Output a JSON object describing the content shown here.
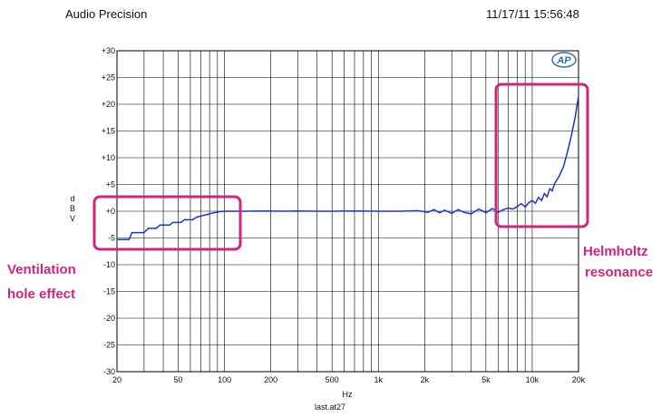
{
  "header": {
    "left": "Audio Precision",
    "right": "11/17/11 15:56:48"
  },
  "logo": {
    "text": "AP",
    "name": "ap-logo-icon"
  },
  "annotations": [
    {
      "id": "ventilation",
      "lines": [
        "Ventilation",
        "hole effect"
      ]
    },
    {
      "id": "helmholtz",
      "lines": [
        "Helmholtz",
        "resonance"
      ]
    }
  ],
  "colors": {
    "trace": "#1f33cc",
    "annotation": "#d0247f",
    "grid": "#000000"
  },
  "chart_data": {
    "type": "line",
    "xscale": "log",
    "xlim": [
      20,
      20000
    ],
    "ylim": [
      -30,
      30
    ],
    "xlabel": "Hz",
    "ylabel": "dBV",
    "footer": "last.at27",
    "grid": true,
    "x_tick_labels": [
      {
        "value": 20,
        "label": "20"
      },
      {
        "value": 50,
        "label": "50"
      },
      {
        "value": 100,
        "label": "100"
      },
      {
        "value": 200,
        "label": "200"
      },
      {
        "value": 500,
        "label": "500"
      },
      {
        "value": 1000,
        "label": "1k"
      },
      {
        "value": 2000,
        "label": "2k"
      },
      {
        "value": 5000,
        "label": "5k"
      },
      {
        "value": 10000,
        "label": "10k"
      },
      {
        "value": 20000,
        "label": "20k"
      }
    ],
    "y_tick_labels": [
      {
        "value": 30,
        "label": "+30"
      },
      {
        "value": 25,
        "label": "+25"
      },
      {
        "value": 20,
        "label": "+20"
      },
      {
        "value": 15,
        "label": "+15"
      },
      {
        "value": 10,
        "label": "+10"
      },
      {
        "value": 5,
        "label": "+5"
      },
      {
        "value": 0,
        "label": "+0"
      },
      {
        "value": -5,
        "label": "-5"
      },
      {
        "value": -10,
        "label": "-10"
      },
      {
        "value": -15,
        "label": "-15"
      },
      {
        "value": -20,
        "label": "-20"
      },
      {
        "value": -25,
        "label": "-25"
      },
      {
        "value": -30,
        "label": "-30"
      }
    ],
    "series": [
      {
        "x": [
          20,
          24,
          25,
          30,
          32,
          36,
          38,
          44,
          46,
          52,
          55,
          62,
          66,
          75,
          82,
          92,
          100,
          130,
          180,
          240,
          300,
          400,
          500,
          700,
          1000,
          1400,
          1800,
          2100,
          2300,
          2500,
          2700,
          3000,
          3300,
          3600,
          4000,
          4500,
          5000,
          5500,
          6000,
          6500,
          7000,
          7500,
          8000,
          8500,
          9000,
          9500,
          10000,
          10500,
          11000,
          11500,
          12000,
          12500,
          13000,
          13500,
          14000,
          15000,
          16000,
          17000,
          18000,
          19000,
          20000
        ],
        "y": [
          -5.3,
          -5.3,
          -4.0,
          -4.0,
          -3.2,
          -3.2,
          -2.6,
          -2.6,
          -2.1,
          -2.1,
          -1.6,
          -1.6,
          -1.1,
          -0.7,
          -0.4,
          -0.1,
          0.0,
          0.0,
          0.05,
          0.0,
          0.05,
          0.0,
          0.0,
          0.05,
          0.0,
          0.0,
          0.1,
          -0.2,
          0.3,
          -0.3,
          0.2,
          -0.4,
          0.3,
          -0.2,
          -0.5,
          0.4,
          -0.3,
          0.5,
          -0.2,
          0.3,
          0.6,
          0.4,
          0.9,
          1.4,
          0.8,
          1.6,
          2.0,
          1.5,
          2.6,
          2.0,
          3.3,
          2.7,
          4.2,
          3.8,
          5.2,
          6.6,
          8.4,
          11.2,
          14.2,
          17.5,
          21.5
        ]
      }
    ]
  }
}
